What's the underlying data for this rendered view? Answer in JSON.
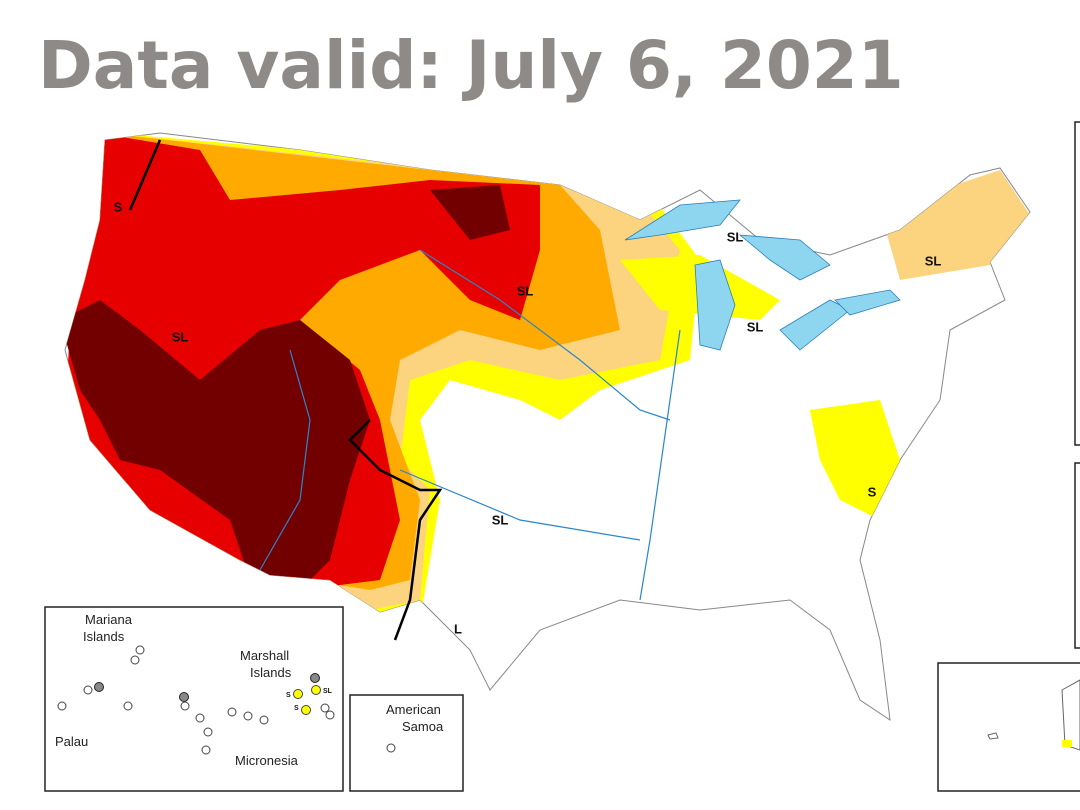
{
  "header": {
    "title": "Data valid: July 6, 2021"
  },
  "map_labels": [
    "S",
    "SL",
    "SL",
    "SL",
    "SL",
    "SL",
    "SL",
    "S",
    "L"
  ],
  "insets": {
    "mariana": [
      "Mariana",
      "Islands"
    ],
    "marshall": [
      "Marshall",
      "Islands"
    ],
    "marshall_codes": [
      "S",
      "SL",
      "S"
    ],
    "palau": "Palau",
    "micronesia": "Micronesia",
    "american_samoa": [
      "American",
      "Samoa"
    ]
  }
}
